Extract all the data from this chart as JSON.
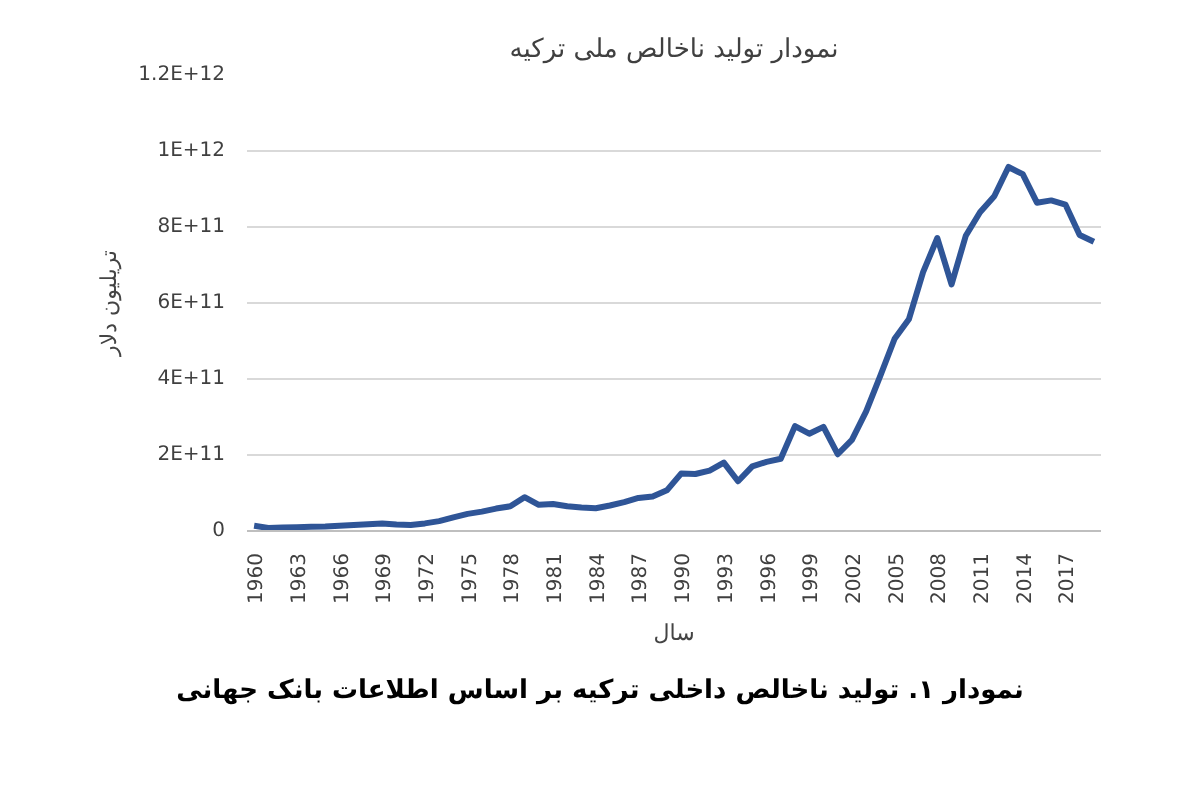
{
  "chart_data": {
    "type": "line",
    "title": "نمودار تولید ناخالص ملی ترکیه",
    "xlabel": "سال",
    "ylabel": "تریلیون دلار",
    "annotations": [
      "نمودار ۱. تولید ناخالص داخلی ترکیه بر اساس اطلاعات بانک جهانی"
    ],
    "x": [
      1960,
      1961,
      1962,
      1963,
      1964,
      1965,
      1966,
      1967,
      1968,
      1969,
      1970,
      1971,
      1972,
      1973,
      1974,
      1975,
      1976,
      1977,
      1978,
      1979,
      1980,
      1981,
      1982,
      1983,
      1984,
      1985,
      1986,
      1987,
      1988,
      1989,
      1990,
      1991,
      1992,
      1993,
      1994,
      1995,
      1996,
      1997,
      1998,
      1999,
      2000,
      2001,
      2002,
      2003,
      2004,
      2005,
      2006,
      2007,
      2008,
      2009,
      2010,
      2011,
      2012,
      2013,
      2014,
      2015,
      2016,
      2017,
      2018,
      2019
    ],
    "series": [
      {
        "color": "#2f5597",
        "values": [
          14000000000.0,
          8000000000.0,
          9000000000.0,
          10000000000.0,
          11000000000.0,
          12000000000.0,
          14000000000.0,
          16000000000.0,
          18000000000.0,
          20000000000.0,
          17000000000.0,
          16000000000.0,
          20000000000.0,
          26000000000.0,
          36000000000.0,
          45000000000.0,
          51000000000.0,
          59000000000.0,
          65000000000.0,
          89000000000.0,
          69000000000.0,
          71000000000.0,
          65000000000.0,
          62000000000.0,
          60000000000.0,
          67000000000.0,
          76000000000.0,
          87000000000.0,
          91000000000.0,
          107000000000.0,
          151000000000.0,
          150000000000.0,
          159000000000.0,
          180000000000.0,
          131000000000.0,
          170000000000.0,
          182000000000.0,
          190000000000.0,
          276000000000.0,
          256000000000.0,
          274000000000.0,
          202000000000.0,
          240000000000.0,
          315000000000.0,
          409000000000.0,
          506000000000.0,
          557000000000.0,
          681000000000.0,
          771000000000.0,
          649000000000.0,
          777000000000.0,
          839000000000.0,
          881000000000.0,
          958000000000.0,
          939000000000.0,
          864000000000.0,
          870000000000.0,
          859000000000.0,
          779000000000.0,
          761000000000.0
        ]
      }
    ],
    "xlim": [
      1959.5,
      2019.5
    ],
    "xticks": [
      1960,
      1963,
      1966,
      1969,
      1972,
      1975,
      1978,
      1981,
      1984,
      1987,
      1990,
      1993,
      1996,
      1999,
      2002,
      2005,
      2008,
      2011,
      2014,
      2017
    ],
    "ylim": [
      0,
      1200000000000.0
    ],
    "yticks": [
      0,
      {
        "value": 200000000000.0,
        "label": "2E+11"
      },
      {
        "value": 400000000000.0,
        "label": "4E+11"
      },
      {
        "value": 600000000000.0,
        "label": "6E+11"
      },
      {
        "value": 800000000000.0,
        "label": "8E+11"
      },
      {
        "value": 1000000000000.0,
        "label": "1E+12"
      },
      {
        "value": 1200000000000.0,
        "label": "1.2E+12"
      }
    ],
    "grid": "y",
    "marker": "none",
    "line_style": "solid"
  }
}
